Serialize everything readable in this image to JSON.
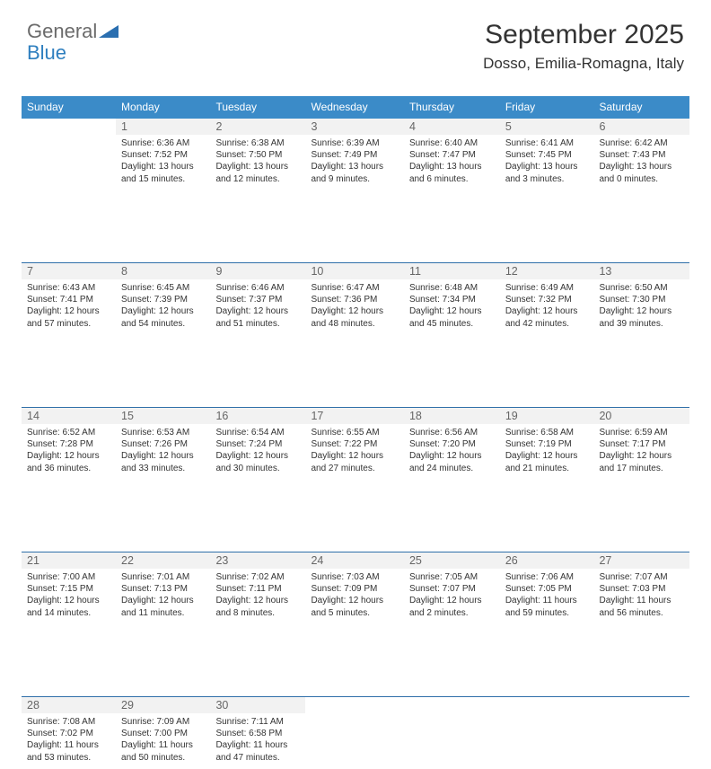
{
  "brand": {
    "part1": "General",
    "part2": "Blue"
  },
  "title": "September 2025",
  "subtitle": "Dosso, Emilia-Romagna, Italy",
  "colors": {
    "header_bg": "#3b8bc8",
    "row_separator": "#2f6fa9",
    "daynum_bg": "#f2f2f2",
    "text": "#333333",
    "brand_gray": "#6b6b6b",
    "brand_blue": "#2f7fbf",
    "triangle": "#2a6fb0"
  },
  "weekdays": [
    "Sunday",
    "Monday",
    "Tuesday",
    "Wednesday",
    "Thursday",
    "Friday",
    "Saturday"
  ],
  "grid": [
    [
      null,
      {
        "n": "1",
        "sr": "6:36 AM",
        "ss": "7:52 PM",
        "dl": "13 hours and 15 minutes."
      },
      {
        "n": "2",
        "sr": "6:38 AM",
        "ss": "7:50 PM",
        "dl": "13 hours and 12 minutes."
      },
      {
        "n": "3",
        "sr": "6:39 AM",
        "ss": "7:49 PM",
        "dl": "13 hours and 9 minutes."
      },
      {
        "n": "4",
        "sr": "6:40 AM",
        "ss": "7:47 PM",
        "dl": "13 hours and 6 minutes."
      },
      {
        "n": "5",
        "sr": "6:41 AM",
        "ss": "7:45 PM",
        "dl": "13 hours and 3 minutes."
      },
      {
        "n": "6",
        "sr": "6:42 AM",
        "ss": "7:43 PM",
        "dl": "13 hours and 0 minutes."
      }
    ],
    [
      {
        "n": "7",
        "sr": "6:43 AM",
        "ss": "7:41 PM",
        "dl": "12 hours and 57 minutes."
      },
      {
        "n": "8",
        "sr": "6:45 AM",
        "ss": "7:39 PM",
        "dl": "12 hours and 54 minutes."
      },
      {
        "n": "9",
        "sr": "6:46 AM",
        "ss": "7:37 PM",
        "dl": "12 hours and 51 minutes."
      },
      {
        "n": "10",
        "sr": "6:47 AM",
        "ss": "7:36 PM",
        "dl": "12 hours and 48 minutes."
      },
      {
        "n": "11",
        "sr": "6:48 AM",
        "ss": "7:34 PM",
        "dl": "12 hours and 45 minutes."
      },
      {
        "n": "12",
        "sr": "6:49 AM",
        "ss": "7:32 PM",
        "dl": "12 hours and 42 minutes."
      },
      {
        "n": "13",
        "sr": "6:50 AM",
        "ss": "7:30 PM",
        "dl": "12 hours and 39 minutes."
      }
    ],
    [
      {
        "n": "14",
        "sr": "6:52 AM",
        "ss": "7:28 PM",
        "dl": "12 hours and 36 minutes."
      },
      {
        "n": "15",
        "sr": "6:53 AM",
        "ss": "7:26 PM",
        "dl": "12 hours and 33 minutes."
      },
      {
        "n": "16",
        "sr": "6:54 AM",
        "ss": "7:24 PM",
        "dl": "12 hours and 30 minutes."
      },
      {
        "n": "17",
        "sr": "6:55 AM",
        "ss": "7:22 PM",
        "dl": "12 hours and 27 minutes."
      },
      {
        "n": "18",
        "sr": "6:56 AM",
        "ss": "7:20 PM",
        "dl": "12 hours and 24 minutes."
      },
      {
        "n": "19",
        "sr": "6:58 AM",
        "ss": "7:19 PM",
        "dl": "12 hours and 21 minutes."
      },
      {
        "n": "20",
        "sr": "6:59 AM",
        "ss": "7:17 PM",
        "dl": "12 hours and 17 minutes."
      }
    ],
    [
      {
        "n": "21",
        "sr": "7:00 AM",
        "ss": "7:15 PM",
        "dl": "12 hours and 14 minutes."
      },
      {
        "n": "22",
        "sr": "7:01 AM",
        "ss": "7:13 PM",
        "dl": "12 hours and 11 minutes."
      },
      {
        "n": "23",
        "sr": "7:02 AM",
        "ss": "7:11 PM",
        "dl": "12 hours and 8 minutes."
      },
      {
        "n": "24",
        "sr": "7:03 AM",
        "ss": "7:09 PM",
        "dl": "12 hours and 5 minutes."
      },
      {
        "n": "25",
        "sr": "7:05 AM",
        "ss": "7:07 PM",
        "dl": "12 hours and 2 minutes."
      },
      {
        "n": "26",
        "sr": "7:06 AM",
        "ss": "7:05 PM",
        "dl": "11 hours and 59 minutes."
      },
      {
        "n": "27",
        "sr": "7:07 AM",
        "ss": "7:03 PM",
        "dl": "11 hours and 56 minutes."
      }
    ],
    [
      {
        "n": "28",
        "sr": "7:08 AM",
        "ss": "7:02 PM",
        "dl": "11 hours and 53 minutes."
      },
      {
        "n": "29",
        "sr": "7:09 AM",
        "ss": "7:00 PM",
        "dl": "11 hours and 50 minutes."
      },
      {
        "n": "30",
        "sr": "7:11 AM",
        "ss": "6:58 PM",
        "dl": "11 hours and 47 minutes."
      },
      null,
      null,
      null,
      null
    ]
  ],
  "labels": {
    "sunrise": "Sunrise:",
    "sunset": "Sunset:",
    "daylight": "Daylight:"
  }
}
